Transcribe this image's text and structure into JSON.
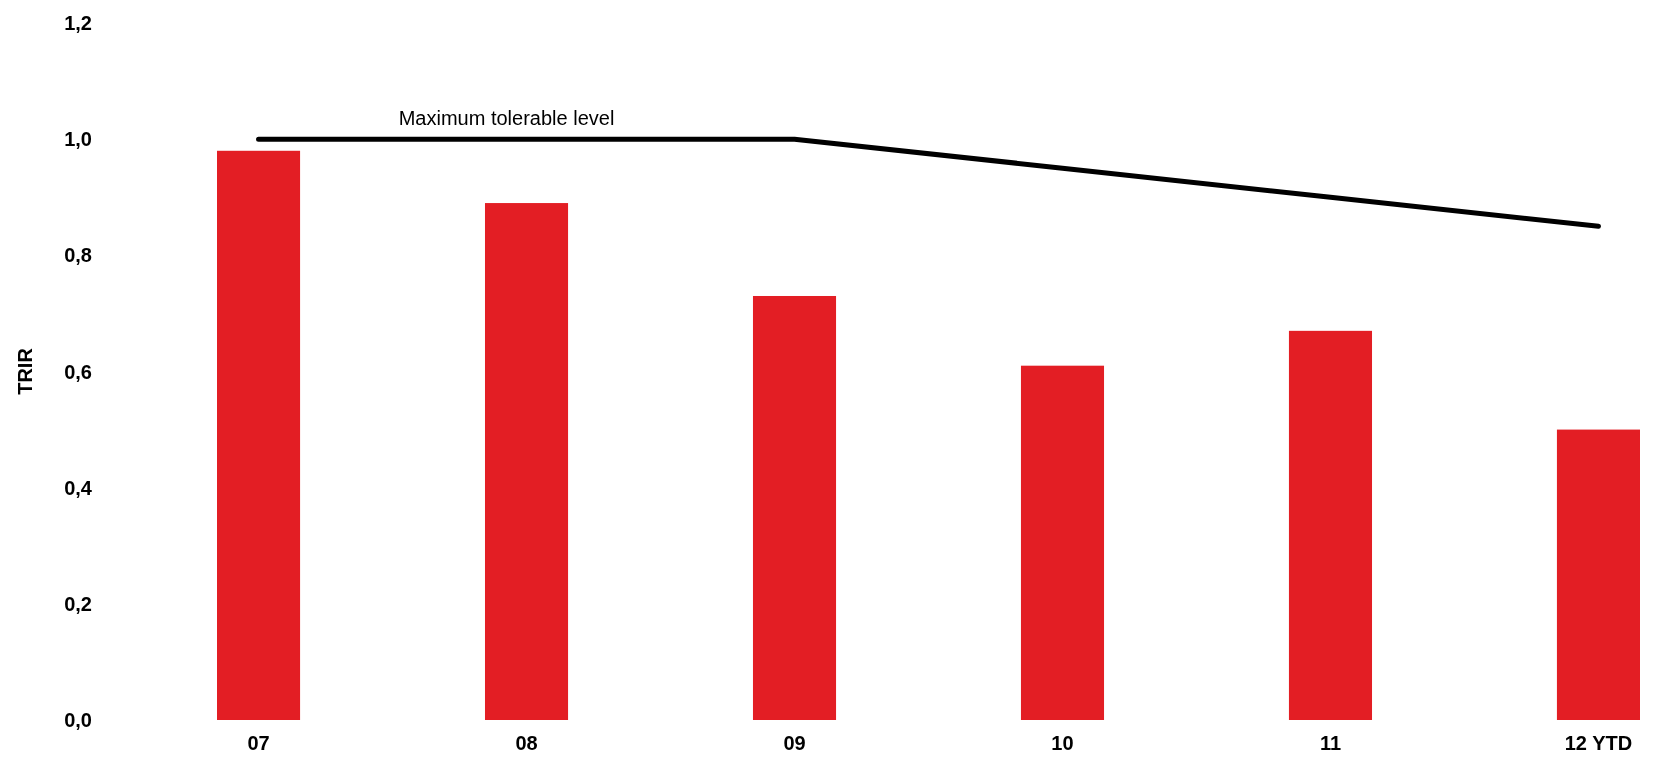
{
  "chart_data": {
    "type": "bar",
    "ylabel": "TRIR",
    "categories": [
      "07",
      "08",
      "09",
      "10",
      "11",
      "12 YTD"
    ],
    "series": [
      {
        "color": "#e31e24",
        "values": [
          0.98,
          0.89,
          0.73,
          0.61,
          0.67,
          0.5
        ]
      },
      {
        "type": "line",
        "name": "Maximum tolerable level",
        "color": "#000000",
        "values": [
          1.0,
          1.0,
          1.0,
          0.95,
          0.9,
          0.85
        ]
      }
    ],
    "ylim": [
      0,
      1.2
    ],
    "yticks": [
      {
        "value": 0,
        "label": "0,0"
      },
      {
        "value": 0.2,
        "label": "0,2"
      },
      {
        "value": 0.4,
        "label": "0,4"
      },
      {
        "value": 0.6,
        "label": "0,6"
      },
      {
        "value": 0.8,
        "label": "0,8"
      },
      {
        "value": 1.0,
        "label": "1,0"
      },
      {
        "value": 1.2,
        "label": "1,2"
      }
    ],
    "grid": false,
    "legend": false
  }
}
